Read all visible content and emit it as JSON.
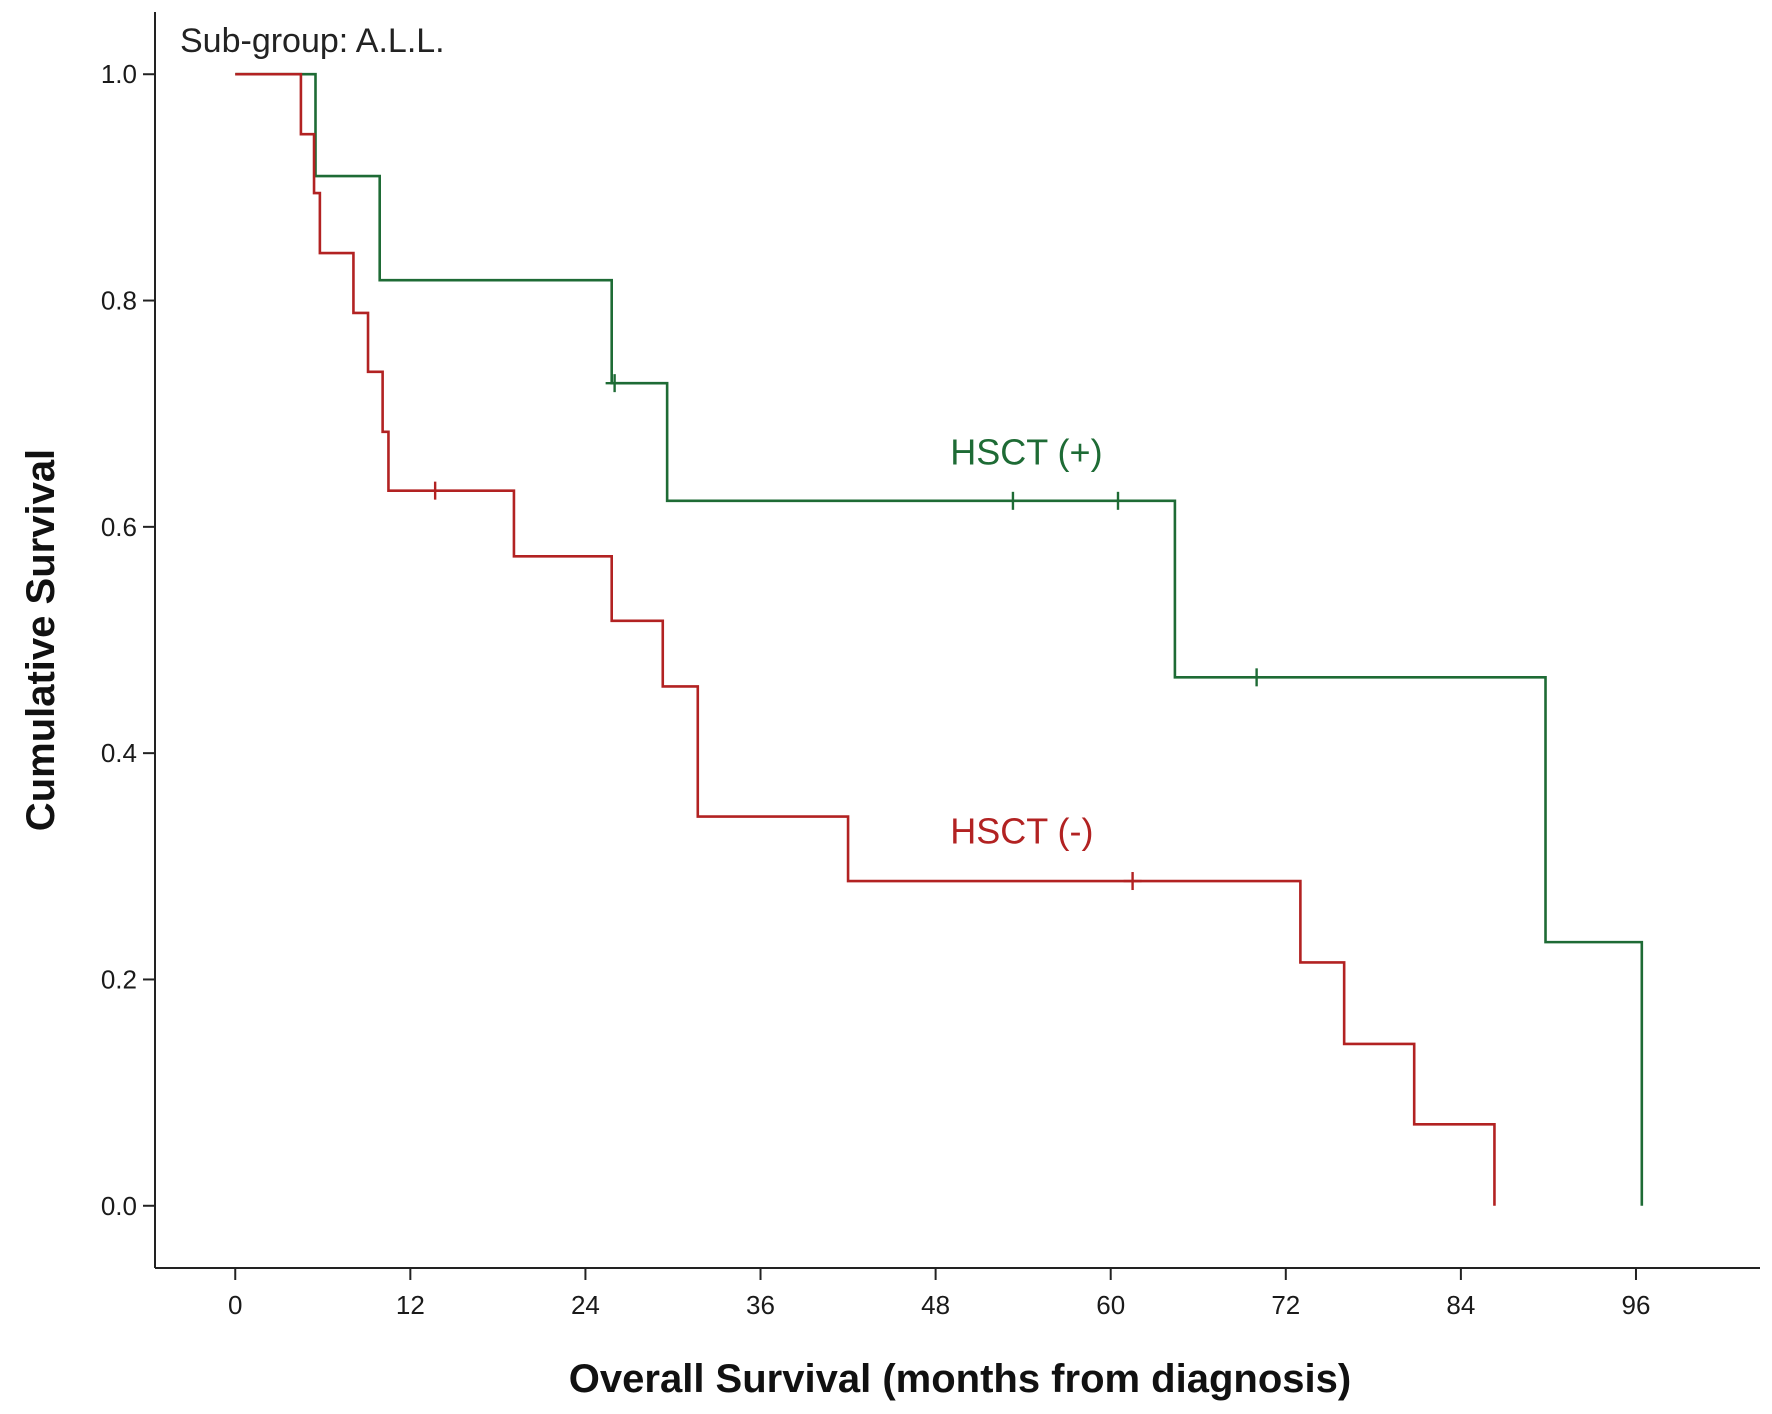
{
  "chart_data": {
    "type": "line",
    "subtitle": "Sub-group: A.L.L.",
    "xlabel": "Overall Survival (months from diagnosis)",
    "ylabel": "Cumulative Survival",
    "xlim": [
      -5.5,
      104.5
    ],
    "ylim": [
      -0.055,
      1.055
    ],
    "xticks": [
      0,
      12,
      24,
      36,
      48,
      60,
      72,
      84,
      96
    ],
    "xtick_labels": [
      "0",
      "12",
      "24",
      "36",
      "48",
      "60",
      "72",
      "84",
      "96"
    ],
    "yticks": [
      0.0,
      0.2,
      0.4,
      0.6,
      0.8,
      1.0
    ],
    "ytick_labels": [
      "0.0",
      "0.2",
      "0.4",
      "0.6",
      "0.8",
      "1.0"
    ],
    "grid": false,
    "series": [
      {
        "name": "HSCT (+)",
        "label_position": {
          "x": 49.0,
          "y": 0.655
        },
        "color": "#1e6b35",
        "steps": [
          {
            "x": 0,
            "y": 1.0
          },
          {
            "x": 5.5,
            "y": 0.91
          },
          {
            "x": 9.9,
            "y": 0.818
          },
          {
            "x": 25.8,
            "y": 0.727
          },
          {
            "x": 29.6,
            "y": 0.623
          },
          {
            "x": 64.4,
            "y": 0.467
          },
          {
            "x": 89.8,
            "y": 0.233
          },
          {
            "x": 96.4,
            "y": 0.0
          }
        ],
        "end_x": 96.4,
        "censored": [
          {
            "x": 26.0,
            "y": 0.727
          },
          {
            "x": 53.3,
            "y": 0.623
          },
          {
            "x": 60.5,
            "y": 0.623
          },
          {
            "x": 70.0,
            "y": 0.467
          }
        ]
      },
      {
        "name": "HSCT (-)",
        "label_position": {
          "x": 49.0,
          "y": 0.32
        },
        "color": "#b22222",
        "steps": [
          {
            "x": 0,
            "y": 1.0
          },
          {
            "x": 4.5,
            "y": 0.947
          },
          {
            "x": 5.4,
            "y": 0.895
          },
          {
            "x": 5.8,
            "y": 0.842
          },
          {
            "x": 8.1,
            "y": 0.789
          },
          {
            "x": 9.1,
            "y": 0.737
          },
          {
            "x": 10.1,
            "y": 0.684
          },
          {
            "x": 10.5,
            "y": 0.632
          },
          {
            "x": 19.1,
            "y": 0.574
          },
          {
            "x": 25.8,
            "y": 0.517
          },
          {
            "x": 29.3,
            "y": 0.459
          },
          {
            "x": 31.7,
            "y": 0.344
          },
          {
            "x": 42.0,
            "y": 0.287
          },
          {
            "x": 73.0,
            "y": 0.215
          },
          {
            "x": 76.0,
            "y": 0.143
          },
          {
            "x": 80.8,
            "y": 0.072
          },
          {
            "x": 86.3,
            "y": 0.0
          }
        ],
        "end_x": 86.3,
        "censored": [
          {
            "x": 13.7,
            "y": 0.632
          },
          {
            "x": 61.5,
            "y": 0.287
          }
        ]
      }
    ]
  }
}
